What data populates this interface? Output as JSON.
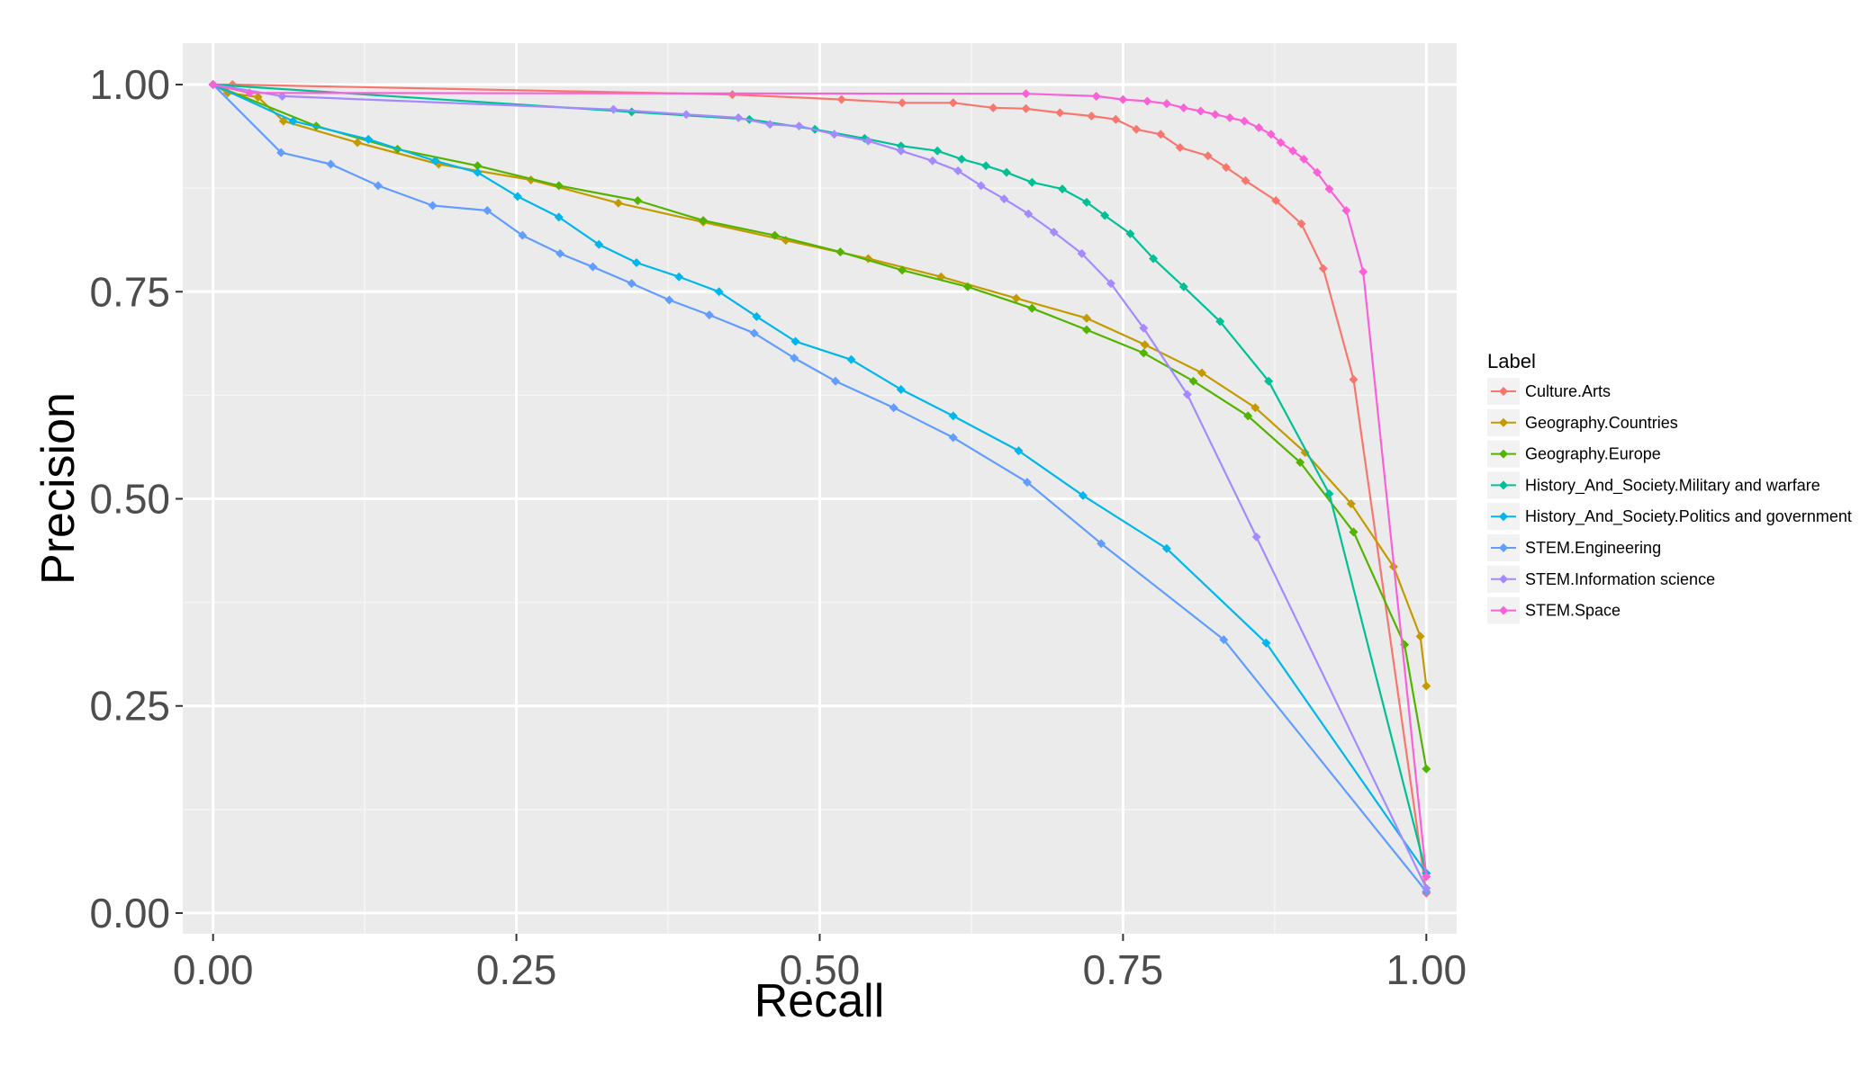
{
  "chart_data": {
    "type": "line",
    "xlabel": "Recall",
    "ylabel": "Precision",
    "xlim": [
      -0.025,
      1.025
    ],
    "ylim": [
      -0.025,
      1.05
    ],
    "x_ticks": [
      "0.00",
      "0.25",
      "0.50",
      "0.75",
      "1.00"
    ],
    "y_ticks": [
      "0.00",
      "0.25",
      "0.50",
      "0.75",
      "1.00"
    ],
    "grid": true,
    "markers": "diamond",
    "legend": {
      "title": "Label",
      "placement": "right"
    },
    "series": [
      {
        "name": "Culture.Arts",
        "color": "#F8766D",
        "points": [
          [
            0.0,
            1.0
          ],
          [
            0.016,
            1.0
          ],
          [
            0.428,
            0.988
          ],
          [
            0.518,
            0.982
          ],
          [
            0.568,
            0.978
          ],
          [
            0.61,
            0.978
          ],
          [
            0.643,
            0.972
          ],
          [
            0.67,
            0.971
          ],
          [
            0.698,
            0.966
          ],
          [
            0.724,
            0.962
          ],
          [
            0.744,
            0.958
          ],
          [
            0.761,
            0.946
          ],
          [
            0.781,
            0.94
          ],
          [
            0.797,
            0.924
          ],
          [
            0.82,
            0.914
          ],
          [
            0.835,
            0.9
          ],
          [
            0.851,
            0.884
          ],
          [
            0.876,
            0.86
          ],
          [
            0.897,
            0.832
          ],
          [
            0.915,
            0.778
          ],
          [
            0.94,
            0.644
          ],
          [
            1.0,
            0.024
          ]
        ]
      },
      {
        "name": "Geography.Countries",
        "color": "#C49A00",
        "points": [
          [
            0.0,
            1.0
          ],
          [
            0.012,
            0.99
          ],
          [
            0.037,
            0.985
          ],
          [
            0.058,
            0.956
          ],
          [
            0.119,
            0.93
          ],
          [
            0.186,
            0.904
          ],
          [
            0.262,
            0.885
          ],
          [
            0.334,
            0.857
          ],
          [
            0.404,
            0.834
          ],
          [
            0.472,
            0.812
          ],
          [
            0.54,
            0.79
          ],
          [
            0.6,
            0.768
          ],
          [
            0.662,
            0.742
          ],
          [
            0.72,
            0.718
          ],
          [
            0.768,
            0.686
          ],
          [
            0.815,
            0.652
          ],
          [
            0.859,
            0.61
          ],
          [
            0.9,
            0.556
          ],
          [
            0.938,
            0.494
          ],
          [
            0.973,
            0.418
          ],
          [
            0.995,
            0.334
          ],
          [
            1.0,
            0.274
          ]
        ]
      },
      {
        "name": "Geography.Europe",
        "color": "#53B400",
        "points": [
          [
            0.0,
            1.0
          ],
          [
            0.085,
            0.95
          ],
          [
            0.152,
            0.922
          ],
          [
            0.218,
            0.902
          ],
          [
            0.285,
            0.878
          ],
          [
            0.35,
            0.86
          ],
          [
            0.404,
            0.836
          ],
          [
            0.463,
            0.818
          ],
          [
            0.517,
            0.798
          ],
          [
            0.568,
            0.776
          ],
          [
            0.622,
            0.756
          ],
          [
            0.675,
            0.73
          ],
          [
            0.72,
            0.704
          ],
          [
            0.767,
            0.676
          ],
          [
            0.808,
            0.642
          ],
          [
            0.853,
            0.6
          ],
          [
            0.896,
            0.544
          ],
          [
            0.94,
            0.46
          ],
          [
            0.982,
            0.324
          ],
          [
            1.0,
            0.174
          ]
        ]
      },
      {
        "name": "History_And_Society.Military and warfare",
        "color": "#00C094",
        "points": [
          [
            0.0,
            1.0
          ],
          [
            0.345,
            0.967
          ],
          [
            0.442,
            0.958
          ],
          [
            0.496,
            0.946
          ],
          [
            0.537,
            0.935
          ],
          [
            0.567,
            0.926
          ],
          [
            0.597,
            0.92
          ],
          [
            0.617,
            0.91
          ],
          [
            0.637,
            0.902
          ],
          [
            0.654,
            0.894
          ],
          [
            0.675,
            0.882
          ],
          [
            0.7,
            0.874
          ],
          [
            0.72,
            0.858
          ],
          [
            0.735,
            0.842
          ],
          [
            0.756,
            0.82
          ],
          [
            0.775,
            0.79
          ],
          [
            0.8,
            0.756
          ],
          [
            0.83,
            0.714
          ],
          [
            0.87,
            0.642
          ],
          [
            0.92,
            0.506
          ],
          [
            1.0,
            0.048
          ]
        ]
      },
      {
        "name": "History_And_Society.Politics and government",
        "color": "#00B6EB",
        "points": [
          [
            0.0,
            1.0
          ],
          [
            0.066,
            0.956
          ],
          [
            0.128,
            0.934
          ],
          [
            0.183,
            0.908
          ],
          [
            0.218,
            0.894
          ],
          [
            0.251,
            0.865
          ],
          [
            0.285,
            0.84
          ],
          [
            0.318,
            0.807
          ],
          [
            0.349,
            0.785
          ],
          [
            0.384,
            0.768
          ],
          [
            0.417,
            0.75
          ],
          [
            0.448,
            0.72
          ],
          [
            0.48,
            0.69
          ],
          [
            0.526,
            0.668
          ],
          [
            0.567,
            0.632
          ],
          [
            0.61,
            0.6
          ],
          [
            0.664,
            0.558
          ],
          [
            0.717,
            0.504
          ],
          [
            0.786,
            0.44
          ],
          [
            0.868,
            0.326
          ],
          [
            1.0,
            0.048
          ]
        ]
      },
      {
        "name": "STEM.Engineering",
        "color": "#619CFF",
        "points": [
          [
            0.0,
            1.0
          ],
          [
            0.056,
            0.918
          ],
          [
            0.097,
            0.904
          ],
          [
            0.136,
            0.878
          ],
          [
            0.181,
            0.854
          ],
          [
            0.226,
            0.848
          ],
          [
            0.255,
            0.818
          ],
          [
            0.286,
            0.796
          ],
          [
            0.313,
            0.78
          ],
          [
            0.345,
            0.76
          ],
          [
            0.376,
            0.74
          ],
          [
            0.409,
            0.722
          ],
          [
            0.446,
            0.7
          ],
          [
            0.479,
            0.67
          ],
          [
            0.513,
            0.642
          ],
          [
            0.561,
            0.61
          ],
          [
            0.61,
            0.574
          ],
          [
            0.671,
            0.52
          ],
          [
            0.732,
            0.446
          ],
          [
            0.833,
            0.33
          ],
          [
            1.0,
            0.026
          ]
        ]
      },
      {
        "name": "STEM.Information science",
        "color": "#A58AFF",
        "points": [
          [
            0.0,
            1.0
          ],
          [
            0.057,
            0.986
          ],
          [
            0.33,
            0.97
          ],
          [
            0.39,
            0.964
          ],
          [
            0.433,
            0.96
          ],
          [
            0.459,
            0.952
          ],
          [
            0.483,
            0.95
          ],
          [
            0.512,
            0.94
          ],
          [
            0.54,
            0.932
          ],
          [
            0.567,
            0.92
          ],
          [
            0.593,
            0.908
          ],
          [
            0.614,
            0.896
          ],
          [
            0.633,
            0.878
          ],
          [
            0.652,
            0.862
          ],
          [
            0.672,
            0.844
          ],
          [
            0.693,
            0.822
          ],
          [
            0.716,
            0.796
          ],
          [
            0.74,
            0.76
          ],
          [
            0.767,
            0.706
          ],
          [
            0.803,
            0.626
          ],
          [
            0.86,
            0.454
          ],
          [
            1.0,
            0.03
          ]
        ]
      },
      {
        "name": "STEM.Space",
        "color": "#FB61D7",
        "points": [
          [
            0.0,
            1.0
          ],
          [
            0.03,
            0.99
          ],
          [
            0.67,
            0.989
          ],
          [
            0.728,
            0.986
          ],
          [
            0.75,
            0.982
          ],
          [
            0.77,
            0.98
          ],
          [
            0.786,
            0.977
          ],
          [
            0.8,
            0.972
          ],
          [
            0.814,
            0.968
          ],
          [
            0.826,
            0.964
          ],
          [
            0.838,
            0.96
          ],
          [
            0.85,
            0.956
          ],
          [
            0.862,
            0.948
          ],
          [
            0.872,
            0.94
          ],
          [
            0.88,
            0.93
          ],
          [
            0.89,
            0.92
          ],
          [
            0.899,
            0.91
          ],
          [
            0.91,
            0.894
          ],
          [
            0.92,
            0.874
          ],
          [
            0.934,
            0.848
          ],
          [
            0.948,
            0.774
          ],
          [
            1.0,
            0.044
          ]
        ]
      }
    ]
  }
}
